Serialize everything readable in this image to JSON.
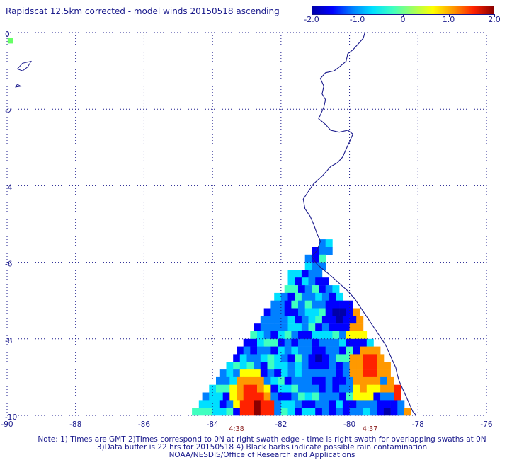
{
  "title": "Rapidscat 12.5km corrected - model winds 20150518 ascending",
  "colorbar": {
    "ticks": [
      "-2.0",
      "-1.0",
      "0",
      "1.0",
      "2.0"
    ],
    "range": [
      -2.0,
      2.0
    ],
    "colors": [
      "#0000aa",
      "#0000ff",
      "#0080ff",
      "#00e0ff",
      "#40ffc0",
      "#a0ff60",
      "#ffff00",
      "#ff9900",
      "#ff2200",
      "#8b0000"
    ]
  },
  "axes": {
    "x_ticks": [
      "-90",
      "-88",
      "-86",
      "-84",
      "-82",
      "-80",
      "-78",
      "-76"
    ],
    "y_ticks": [
      "0",
      "-2",
      "-4",
      "-6",
      "-8",
      "-10"
    ],
    "lon_range": [
      -90,
      -76
    ],
    "lat_range": [
      -10,
      0
    ]
  },
  "time_labels": [
    {
      "text": "4:38",
      "lon": -83.3
    },
    {
      "text": "4:37",
      "lon": -79.4
    }
  ],
  "notes": [
    "Note: 1) Times are GMT 2)Times correspond to 0N at right swath edge - time is right swath for overlapping swaths at 0N",
    "3)Data buffer is 22 hrs for 20150518 4) Black barbs indicate possible rain contamination",
    "NOAA/NESDIS/Office of Research and Applications"
  ],
  "swath": {
    "rows": [
      {
        "lat": -5.4,
        "lon_min": -80.9,
        "lon_max": -80.7
      },
      {
        "lat": -5.6,
        "lon_min": -81.1,
        "lon_max": -80.7
      },
      {
        "lat": -5.8,
        "lon_min": -81.3,
        "lon_max": -80.9
      },
      {
        "lat": -6.0,
        "lon_min": -81.3,
        "lon_max": -80.9
      },
      {
        "lat": -6.2,
        "lon_min": -81.8,
        "lon_max": -80.9
      },
      {
        "lat": -6.4,
        "lon_min": -81.8,
        "lon_max": -80.7
      },
      {
        "lat": -6.6,
        "lon_min": -81.9,
        "lon_max": -80.5
      },
      {
        "lat": -6.8,
        "lon_min": -82.2,
        "lon_max": -80.3
      },
      {
        "lat": -7.0,
        "lon_min": -82.3,
        "lon_max": -80.1
      },
      {
        "lat": -7.2,
        "lon_min": -82.5,
        "lon_max": -79.9
      },
      {
        "lat": -7.4,
        "lon_min": -82.6,
        "lon_max": -79.8
      },
      {
        "lat": -7.6,
        "lon_min": -82.8,
        "lon_max": -79.7
      },
      {
        "lat": -7.8,
        "lon_min": -82.9,
        "lon_max": -79.6
      },
      {
        "lat": -8.0,
        "lon_min": -83.1,
        "lon_max": -79.4
      },
      {
        "lat": -8.2,
        "lon_min": -83.3,
        "lon_max": -79.3
      },
      {
        "lat": -8.4,
        "lon_min": -83.4,
        "lon_max": -79.1
      },
      {
        "lat": -8.6,
        "lon_min": -83.6,
        "lon_max": -79.0
      },
      {
        "lat": -8.8,
        "lon_min": -83.8,
        "lon_max": -78.9
      },
      {
        "lat": -9.0,
        "lon_min": -83.9,
        "lon_max": -78.8
      },
      {
        "lat": -9.2,
        "lon_min": -84.1,
        "lon_max": -78.7
      },
      {
        "lat": -9.4,
        "lon_min": -84.3,
        "lon_max": -78.6
      },
      {
        "lat": -9.6,
        "lon_min": -84.4,
        "lon_max": -78.5
      },
      {
        "lat": -9.8,
        "lon_min": -84.6,
        "lon_max": -78.4
      }
    ],
    "cell_deg": 0.2,
    "hot_spots": [
      {
        "lon": -79.5,
        "lat": -8.6,
        "value": 1.8
      },
      {
        "lon": -79.7,
        "lat": -9.0,
        "value": 1.3
      },
      {
        "lon": -82.8,
        "lat": -9.7,
        "value": 2.0
      },
      {
        "lon": -79.9,
        "lat": -7.4,
        "value": 1.4
      },
      {
        "lon": -78.7,
        "lat": -9.5,
        "value": 1.9
      },
      {
        "lon": -83.0,
        "lat": -9.3,
        "value": 1.6
      }
    ],
    "cold_spots": [
      {
        "lon": -80.4,
        "lat": -7.3,
        "value": -2.0
      },
      {
        "lon": -81.0,
        "lat": -8.4,
        "value": -1.8
      },
      {
        "lon": -80.5,
        "lat": -9.1,
        "value": -1.6
      },
      {
        "lon": -79.0,
        "lat": -9.8,
        "value": -1.8
      }
    ]
  },
  "marker": {
    "lon": -89.9,
    "lat": -0.1,
    "color": "#66ff66"
  }
}
